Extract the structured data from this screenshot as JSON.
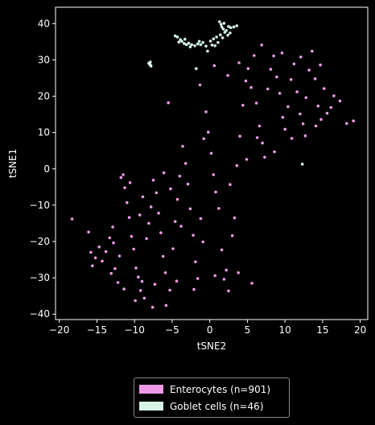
{
  "chart_data": {
    "type": "scatter",
    "xlabel": "tSNE2",
    "ylabel": "tSNE1",
    "xlim": [
      -20.5,
      21
    ],
    "ylim": [
      -41.5,
      44.5
    ],
    "x_ticks": [
      -20,
      -15,
      -10,
      -5,
      0,
      5,
      10,
      15,
      20
    ],
    "y_ticks": [
      -40,
      -30,
      -20,
      -10,
      0,
      10,
      20,
      30,
      40
    ],
    "grid": false,
    "legend_position": "bottom-center, below plot",
    "series": [
      {
        "name": "Enterocytes (n=901)",
        "color": "#ee99e8",
        "count": 901,
        "points": [
          [
            -18.3,
            -13.8
          ],
          [
            -16.1,
            -17.4
          ],
          [
            -15.8,
            -23
          ],
          [
            -15.2,
            -24.5
          ],
          [
            -14.7,
            -21.5
          ],
          [
            -14.3,
            -25.4
          ],
          [
            -13.8,
            -22.8
          ],
          [
            -13.3,
            -19
          ],
          [
            -12.9,
            -16
          ],
          [
            -12.6,
            -27.5
          ],
          [
            -12.2,
            -31.3
          ],
          [
            -12,
            -24
          ],
          [
            -11.8,
            -2.4
          ],
          [
            -11.5,
            -1.6
          ],
          [
            -11.3,
            -5.2
          ],
          [
            -11,
            -9.3
          ],
          [
            -10.7,
            -13.4
          ],
          [
            -10.4,
            -18.6
          ],
          [
            -10.1,
            -22.1
          ],
          [
            -9.8,
            -27.3
          ],
          [
            -9.5,
            -29.8
          ],
          [
            -9.2,
            -33.5
          ],
          [
            -9,
            -31
          ],
          [
            -8.7,
            -35.6
          ],
          [
            -8.4,
            -19.2
          ],
          [
            -8.1,
            -15
          ],
          [
            -7.8,
            -10.5
          ],
          [
            -7.5,
            -3.1
          ],
          [
            -7.1,
            -6.6
          ],
          [
            -6.8,
            -12.2
          ],
          [
            -6.5,
            -17.6
          ],
          [
            -6.2,
            -24.1
          ],
          [
            -5.9,
            -28.6
          ],
          [
            -5.8,
            -37.6
          ],
          [
            -5.5,
            18.2
          ],
          [
            -5.3,
            -33.4
          ],
          [
            -4.9,
            -22
          ],
          [
            -4.6,
            -14.5
          ],
          [
            -4.3,
            -8.4
          ],
          [
            -4,
            -2
          ],
          [
            -3.6,
            6.2
          ],
          [
            -3.2,
            1.5
          ],
          [
            -2.9,
            -4.2
          ],
          [
            -2.6,
            -11
          ],
          [
            -2.2,
            -18.3
          ],
          [
            -1.9,
            -25.6
          ],
          [
            -1.6,
            -30.2
          ],
          [
            -1.2,
            -13.7
          ],
          [
            -0.8,
            8.3
          ],
          [
            -0.5,
            15.7
          ],
          [
            -0.2,
            10.1
          ],
          [
            0.2,
            4.3
          ],
          [
            0.5,
            -1.6
          ],
          [
            0.8,
            -6.4
          ],
          [
            1.2,
            -10.9
          ],
          [
            1.6,
            -22.3
          ],
          [
            1.9,
            -30.4
          ],
          [
            2.2,
            -27.9
          ],
          [
            2.5,
            -33.6
          ],
          [
            3,
            -18.4
          ],
          [
            3.3,
            -13.5
          ],
          [
            3.6,
            0.9
          ],
          [
            4,
            9
          ],
          [
            4.4,
            17.5
          ],
          [
            4.8,
            24.2
          ],
          [
            5.1,
            27.6
          ],
          [
            5.5,
            22.4
          ],
          [
            5.9,
            31.2
          ],
          [
            6.2,
            18.1
          ],
          [
            6.6,
            11.8
          ],
          [
            7,
            7.1
          ],
          [
            7.3,
            3.2
          ],
          [
            7.7,
            22
          ],
          [
            8.1,
            27.4
          ],
          [
            8.5,
            31.1
          ],
          [
            8.9,
            25.3
          ],
          [
            9.3,
            20.8
          ],
          [
            9.7,
            14.2
          ],
          [
            10,
            10.9
          ],
          [
            10.4,
            17.1
          ],
          [
            10.8,
            24.6
          ],
          [
            11.2,
            28.9
          ],
          [
            11.6,
            21.2
          ],
          [
            12,
            15.1
          ],
          [
            12.4,
            12.4
          ],
          [
            12.8,
            19.6
          ],
          [
            13.2,
            27.2
          ],
          [
            13.6,
            32.4
          ],
          [
            14,
            24.8
          ],
          [
            14.4,
            17.3
          ],
          [
            14.8,
            13.6
          ],
          [
            15.2,
            22.1
          ],
          [
            15.6,
            15.3
          ],
          [
            17.3,
            18.7
          ],
          [
            18.2,
            12.5
          ],
          [
            19.1,
            13.2
          ],
          [
            -13.1,
            -28.8
          ],
          [
            -11.4,
            -33.1
          ],
          [
            -9.9,
            -36.3
          ],
          [
            -7.3,
            -31.8
          ],
          [
            -4.4,
            -30.9
          ],
          [
            -2.1,
            -33.2
          ],
          [
            0.7,
            -29.4
          ],
          [
            3.8,
            -28.6
          ],
          [
            5.6,
            -31.5
          ],
          [
            -10.6,
            -3.8
          ],
          [
            -8.9,
            -7.7
          ],
          [
            -6.1,
            -1.1
          ],
          [
            -3.8,
            -15.8
          ],
          [
            -0.9,
            -20.1
          ],
          [
            2.7,
            -4.3
          ],
          [
            4.9,
            2.6
          ],
          [
            6.3,
            8.6
          ],
          [
            8.6,
            4.7
          ],
          [
            10.9,
            8.4
          ],
          [
            12.7,
            9.1
          ],
          [
            14.1,
            11.8
          ],
          [
            16.1,
            16.9
          ],
          [
            16.5,
            20.1
          ],
          [
            -1.3,
            23.1
          ],
          [
            0.6,
            28.4
          ],
          [
            2.4,
            25.7
          ],
          [
            3.9,
            29.2
          ],
          [
            6.9,
            34.1
          ],
          [
            9.6,
            31.9
          ],
          [
            12.1,
            30.8
          ],
          [
            14.7,
            28.6
          ],
          [
            -7.6,
            -38.1
          ],
          [
            -12.8,
            -20.4
          ],
          [
            -15.6,
            -26.7
          ],
          [
            -9.3,
            -12.7
          ],
          [
            -5.2,
            -5.5
          ]
        ]
      },
      {
        "name": "Goblet cells (n=46)",
        "color": "#d6f5e6",
        "count": 46,
        "points": [
          [
            -8.1,
            29.1
          ],
          [
            -7.9,
            28.6
          ],
          [
            -7.8,
            28.3
          ],
          [
            -8,
            28.8
          ],
          [
            -4.6,
            36.6
          ],
          [
            -4.3,
            36.3
          ],
          [
            -3.7,
            35.1
          ],
          [
            -3.4,
            34.5
          ],
          [
            -3.1,
            34.2
          ],
          [
            -2.8,
            34.6
          ],
          [
            -2.4,
            34.2
          ],
          [
            -2,
            33.9
          ],
          [
            -1.6,
            34.4
          ],
          [
            -1.2,
            34.2
          ],
          [
            -0.9,
            34.8
          ],
          [
            -0.5,
            33.8
          ],
          [
            0.1,
            35.2
          ],
          [
            0.5,
            35.8
          ],
          [
            0.9,
            36.3
          ],
          [
            1.3,
            40.5
          ],
          [
            1.5,
            39.8
          ],
          [
            1.6,
            39.1
          ],
          [
            1.8,
            38.5
          ],
          [
            2,
            37.6
          ],
          [
            2.2,
            38.1
          ],
          [
            2.5,
            39.2
          ],
          [
            2.8,
            38.9
          ],
          [
            3.2,
            39.1
          ],
          [
            1.1,
            34.8
          ],
          [
            1.4,
            36.9
          ],
          [
            -1.8,
            27.6
          ],
          [
            12.3,
            1.3
          ],
          [
            -3.9,
            35.6
          ],
          [
            -0.3,
            32.4
          ],
          [
            1.9,
            40.1
          ],
          [
            3.6,
            39.4
          ],
          [
            -2.6,
            33.6
          ],
          [
            0.3,
            34.1
          ],
          [
            2.7,
            37.4
          ],
          [
            -4.1,
            34.9
          ],
          [
            -7.9,
            29.4
          ],
          [
            1.7,
            36.1
          ],
          [
            -1.4,
            35.1
          ],
          [
            0.7,
            33.9
          ],
          [
            2.4,
            36.8
          ],
          [
            -3.3,
            35.7
          ]
        ]
      }
    ]
  },
  "legend": {
    "items": [
      {
        "label": "Enterocytes (n=901)",
        "color": "#ee99e8"
      },
      {
        "label": "Goblet cells (n=46)",
        "color": "#d6f5e6"
      }
    ]
  }
}
